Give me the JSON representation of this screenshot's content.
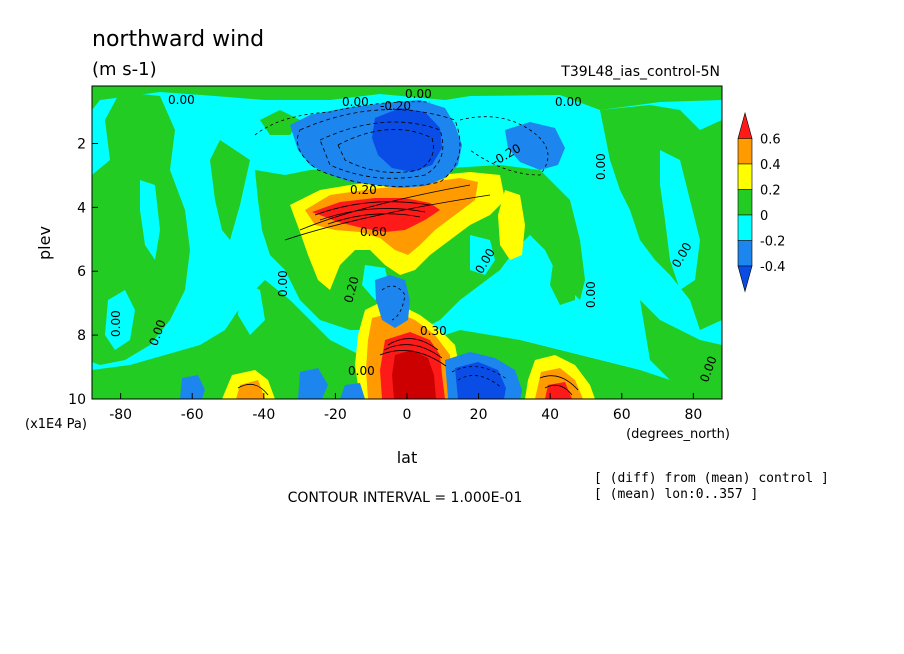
{
  "chart_data": {
    "type": "heatmap",
    "title": "northward wind",
    "subtitle": "(m s-1)",
    "experiment": "T39L48_ias_control-5N",
    "xlabel": "lat",
    "x_units": "(degrees_north)",
    "ylabel": "plev",
    "y_units": "(x1E4 Pa)",
    "x_ticks": [
      "-80",
      "-60",
      "-40",
      "-20",
      "0",
      "20",
      "40",
      "60",
      "80"
    ],
    "y_ticks": [
      "2",
      "4",
      "6",
      "8",
      "10"
    ],
    "xlim": [
      -88,
      88
    ],
    "ylim": [
      10,
      0.2
    ],
    "contour_interval_text": "CONTOUR INTERVAL = 1.000E-01",
    "notes": [
      "[ (diff) from (mean) control ]",
      "[ (mean) lon:0..357 ]"
    ],
    "colorbar": {
      "labels": [
        "0.6",
        "0.4",
        "0.2",
        "0",
        "-0.2",
        "-0.4"
      ],
      "levels": [
        0.6,
        0.4,
        0.2,
        0.0,
        -0.2,
        -0.4
      ],
      "colors": [
        "#ff1a1a",
        "#ff9a00",
        "#ffff00",
        "#22cc22",
        "#00ffff",
        "#1c86ee",
        "#0a4ce6"
      ]
    },
    "contour_labels": [
      "0.00",
      "0.20",
      "-0.20",
      "0.30",
      "0.60",
      "0.00"
    ],
    "features": [
      {
        "name": "northern-blob",
        "lat": 35,
        "plev": 5.2,
        "value": 0.25
      },
      {
        "name": "northern-blob-2",
        "lat": 37,
        "plev": 4.5,
        "value": 0.25
      },
      {
        "name": "upper-dipole",
        "lat": 0,
        "plev": 1.5,
        "value": -0.6
      },
      {
        "name": "upper-negative-ring",
        "lat": -10,
        "plev": 1.6,
        "value": -0.35
      },
      {
        "name": "upper-right-negative",
        "lat": 40,
        "plev": 2.0,
        "value": -0.3
      },
      {
        "name": "upper-jet-positive",
        "lat": -10,
        "plev": 4.0,
        "value": 0.6
      },
      {
        "name": "tongue-positive",
        "lat": 8,
        "plev": 3.4,
        "value": 0.3
      },
      {
        "name": "lower-equatorial-positive",
        "lat": 2,
        "plev": 9.3,
        "value": 0.9
      },
      {
        "name": "lower-north-negative",
        "lat": 22,
        "plev": 9.5,
        "value": -0.4
      },
      {
        "name": "lower-north-positive",
        "lat": 43,
        "plev": 9.5,
        "value": 0.5
      },
      {
        "name": "lower-south-positive",
        "lat": -43,
        "plev": 9.6,
        "value": 0.4
      },
      {
        "name": "lower-south-negative",
        "lat": -25,
        "plev": 9.6,
        "value": -0.3
      },
      {
        "name": "mid-negative-column",
        "lat": 4,
        "plev": 7.5,
        "value": -0.25
      }
    ]
  }
}
